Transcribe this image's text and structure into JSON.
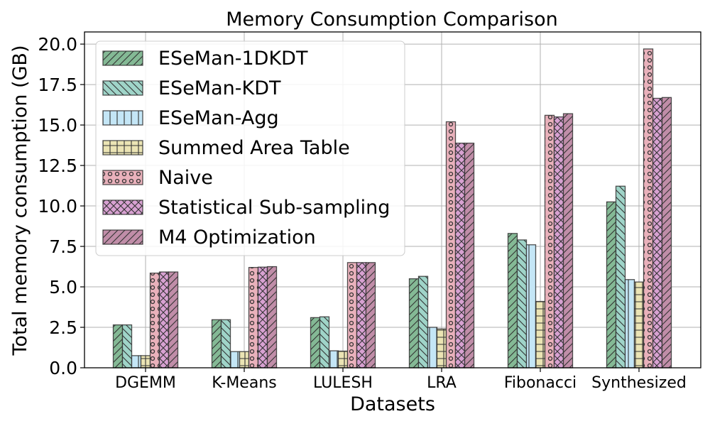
{
  "chart_data": {
    "type": "bar",
    "title": "Memory Consumption Comparison",
    "xlabel": "Datasets",
    "ylabel": "Total memory consumption (GB)",
    "ylim": [
      0,
      20.75
    ],
    "yticks": [
      0.0,
      2.5,
      5.0,
      7.5,
      10.0,
      12.5,
      15.0,
      17.5,
      20.0
    ],
    "ytick_labels": [
      "0.0",
      "2.5",
      "5.0",
      "7.5",
      "10.0",
      "12.5",
      "15.0",
      "17.5",
      "20.0"
    ],
    "grid": true,
    "legend_position": "top-left",
    "categories": [
      "DGEMM",
      "K-Means",
      "LULESH",
      "LRA",
      "Fibonacci",
      "Synthesized"
    ],
    "series": [
      {
        "name": "ESeMan-1DKDT",
        "color": "#84b995",
        "hatch": "/",
        "values": [
          2.65,
          2.97,
          3.1,
          5.5,
          8.3,
          10.25
        ]
      },
      {
        "name": "ESeMan-KDT",
        "color": "#9fd4c8",
        "hatch": "\\",
        "values": [
          2.65,
          2.97,
          3.15,
          5.65,
          7.9,
          11.22
        ]
      },
      {
        "name": "ESeMan-Agg",
        "color": "#c4e6f6",
        "hatch": "|",
        "values": [
          0.75,
          1.0,
          1.05,
          2.5,
          7.6,
          5.45
        ]
      },
      {
        "name": "Summed Area Table",
        "color": "#ebe4b4",
        "hatch": "+",
        "values": [
          0.75,
          1.0,
          1.03,
          2.4,
          4.1,
          5.3
        ]
      },
      {
        "name": "Naive",
        "color": "#e9b1bb",
        "hatch": "o",
        "values": [
          5.85,
          6.2,
          6.5,
          15.2,
          15.6,
          19.7
        ]
      },
      {
        "name": "Statistical Sub-sampling",
        "color": "#d8a1d2",
        "hatch": "x",
        "values": [
          5.92,
          6.22,
          6.5,
          13.88,
          15.5,
          16.65
        ]
      },
      {
        "name": "M4 Optimization",
        "color": "#c08da8",
        "hatch": "/",
        "values": [
          5.92,
          6.25,
          6.5,
          13.88,
          15.7,
          16.7
        ]
      }
    ]
  }
}
